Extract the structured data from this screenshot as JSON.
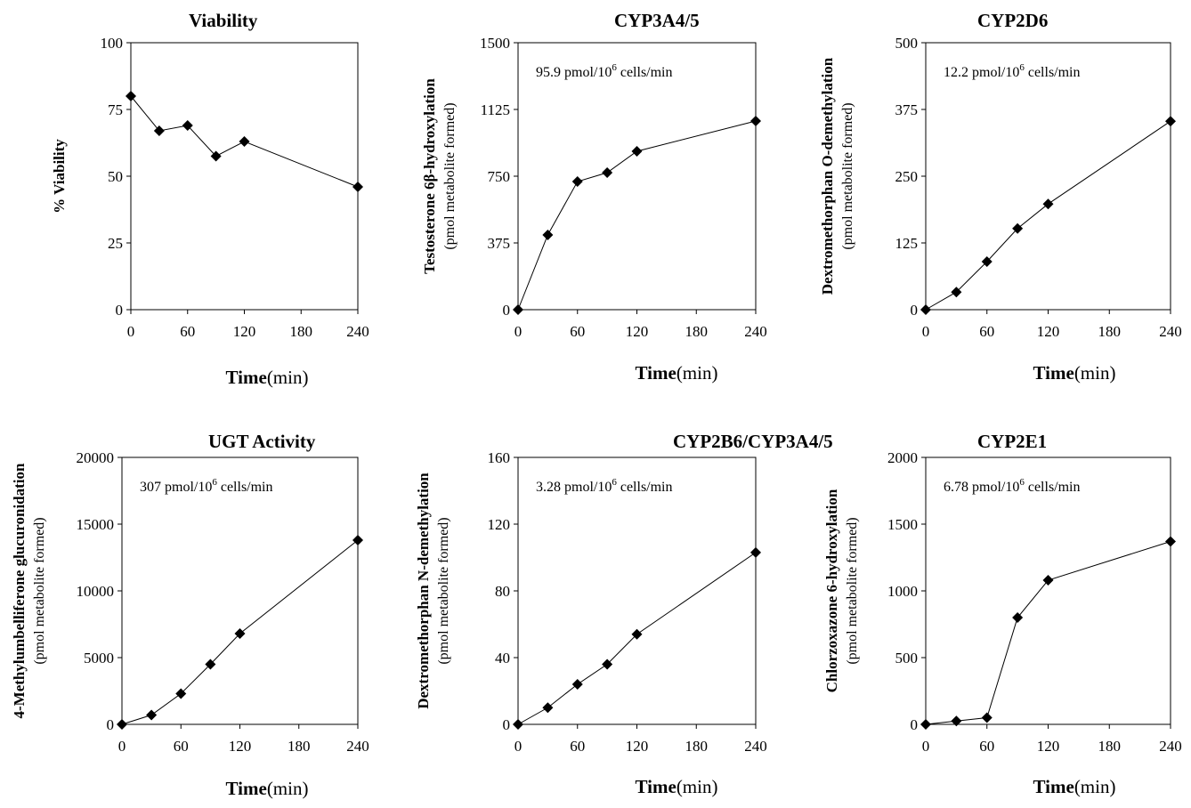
{
  "chart_data": [
    {
      "type": "line",
      "title": "Viability",
      "ylabel": "% Viability",
      "ylabel_sub": "",
      "xlabel_bold": "Time",
      "xlabel_unit": "(min)",
      "xlim": [
        0,
        240
      ],
      "xticks": [
        0,
        60,
        120,
        180,
        240
      ],
      "ylim": [
        0,
        100
      ],
      "yticks": [
        0,
        25,
        50,
        75,
        100
      ],
      "rate": "",
      "x": [
        0,
        30,
        60,
        90,
        120,
        240
      ],
      "series": [
        {
          "values": [
            80,
            67,
            69,
            57.5,
            63,
            46
          ]
        }
      ]
    },
    {
      "type": "line",
      "title": "CYP3A4/5",
      "ylabel": "Testosterone 6β-hydroxylation",
      "ylabel_sub": "(pmol metabolite formed)",
      "xlabel_bold": "Time",
      "xlabel_unit": "(min)",
      "xlim": [
        0,
        240
      ],
      "xticks": [
        0,
        60,
        120,
        180,
        240
      ],
      "ylim": [
        0,
        1500
      ],
      "yticks": [
        0,
        375,
        750,
        1125,
        1500
      ],
      "rate": {
        "value": "95.9 pmol/10",
        "exp": "6",
        "unit": " cells/min"
      },
      "x": [
        0,
        30,
        60,
        90,
        120,
        240
      ],
      "series": [
        {
          "values": [
            0,
            420,
            720,
            770,
            890,
            1060
          ]
        }
      ]
    },
    {
      "type": "line",
      "title": "CYP2D6",
      "ylabel": "Dextromethorphan O-demethylation",
      "ylabel_sub": "(pmol metabolite formed)",
      "xlabel_bold": "Time",
      "xlabel_unit": "(min)",
      "xlim": [
        0,
        240
      ],
      "xticks": [
        0,
        60,
        120,
        180,
        240
      ],
      "ylim": [
        0,
        500
      ],
      "yticks": [
        0,
        125,
        250,
        375,
        500
      ],
      "rate": {
        "value": "12.2 pmol/10",
        "exp": "6",
        "unit": " cells/min"
      },
      "x": [
        0,
        30,
        60,
        90,
        120,
        240
      ],
      "series": [
        {
          "values": [
            0,
            33,
            90,
            152,
            198,
            353
          ]
        }
      ]
    },
    {
      "type": "line",
      "title": "UGT Activity",
      "ylabel": "4-Methylumbelliferone glucuronidation",
      "ylabel_sub": "(pmol metabolite formed)",
      "xlabel_bold": "Time",
      "xlabel_unit": "(min)",
      "xlim": [
        0,
        240
      ],
      "xticks": [
        0,
        60,
        120,
        180,
        240
      ],
      "ylim": [
        0,
        20000
      ],
      "yticks": [
        0,
        5000,
        10000,
        15000,
        20000
      ],
      "rate": {
        "value": "307 pmol/10",
        "exp": "6",
        "unit": " cells/min"
      },
      "x": [
        0,
        30,
        60,
        90,
        120,
        240
      ],
      "series": [
        {
          "values": [
            0,
            700,
            2300,
            4500,
            6800,
            13800
          ]
        }
      ]
    },
    {
      "type": "line",
      "title": "CYP2B6/CYP3A4/5",
      "ylabel": "Dextromethorphan N-demethylation",
      "ylabel_sub": "(pmol metabolite formed)",
      "xlabel_bold": "Time",
      "xlabel_unit": "(min)",
      "xlim": [
        0,
        240
      ],
      "xticks": [
        0,
        60,
        120,
        180,
        240
      ],
      "ylim": [
        0,
        160
      ],
      "yticks": [
        0,
        40,
        80,
        120,
        160
      ],
      "rate": {
        "value": "3.28 pmol/10",
        "exp": "6",
        "unit": " cells/min"
      },
      "x": [
        0,
        30,
        60,
        90,
        120,
        240
      ],
      "series": [
        {
          "values": [
            0,
            10,
            24,
            36,
            54,
            103
          ]
        }
      ]
    },
    {
      "type": "line",
      "title": "CYP2E1",
      "ylabel": "Chlorzoxazone 6-hydroxylation",
      "ylabel_sub": "(pmol metabolite formed)",
      "xlabel_bold": "Time",
      "xlabel_unit": "(min)",
      "xlim": [
        0,
        240
      ],
      "xticks": [
        0,
        60,
        120,
        180,
        240
      ],
      "ylim": [
        0,
        2000
      ],
      "yticks": [
        0,
        500,
        1000,
        1500,
        2000
      ],
      "rate": {
        "value": "6.78 pmol/10",
        "exp": "6",
        "unit": " cells/min"
      },
      "x": [
        0,
        30,
        60,
        90,
        120,
        240
      ],
      "series": [
        {
          "values": [
            0,
            25,
            50,
            800,
            1080,
            1370
          ]
        }
      ]
    }
  ]
}
